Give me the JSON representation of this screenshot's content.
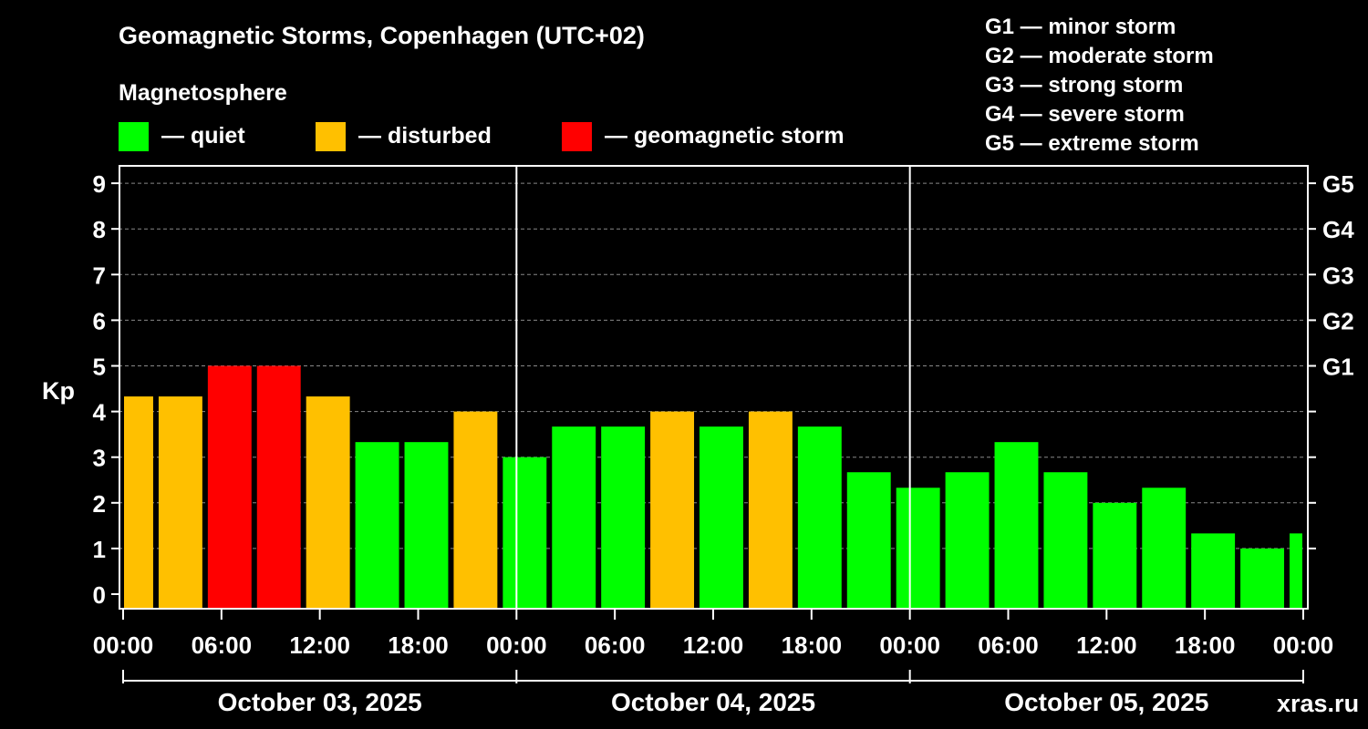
{
  "colors": {
    "background": "#000000",
    "quiet": "#00ff00",
    "disturbed": "#ffc000",
    "storm": "#ff0000",
    "foreground": "#ffffff",
    "grid": "#888888",
    "watermark": "#8c8c8c"
  },
  "header": {
    "title": "Geomagnetic Storms, Copenhagen (UTC+02)",
    "subtitle": "Magnetosphere"
  },
  "legend": [
    {
      "label": "— quiet",
      "color": "#00ff00"
    },
    {
      "label": "— disturbed",
      "color": "#ffc000"
    },
    {
      "label": "— geomagnetic storm",
      "color": "#ff0000"
    }
  ],
  "storm_scale": [
    "G1 — minor storm",
    "G2 — moderate storm",
    "G3 — strong storm",
    "G4 — severe storm",
    "G5 — extreme storm"
  ],
  "watermark": "xras.ru",
  "chart_data": {
    "type": "bar",
    "title": "Geomagnetic Storms, Copenhagen (UTC+02)",
    "ylabel": "Kp",
    "ylim": [
      0,
      9
    ],
    "yticks": [
      0,
      1,
      2,
      3,
      4,
      5,
      6,
      7,
      8,
      9
    ],
    "right_axis_labels": [
      {
        "value": 5,
        "label": "G1"
      },
      {
        "value": 6,
        "label": "G2"
      },
      {
        "value": 7,
        "label": "G3"
      },
      {
        "value": 8,
        "label": "G4"
      },
      {
        "value": 9,
        "label": "G5"
      }
    ],
    "grid": true,
    "x_range_hours": [
      0,
      72
    ],
    "x_tick_labels": [
      "00:00",
      "06:00",
      "12:00",
      "18:00",
      "00:00",
      "06:00",
      "12:00",
      "18:00",
      "00:00",
      "06:00",
      "12:00",
      "18:00",
      "00:00"
    ],
    "day_labels": [
      "October 03, 2025",
      "October 04, 2025",
      "October 05, 2025"
    ],
    "bars": [
      {
        "start": 0,
        "end": 2,
        "value": 4.33,
        "level": "disturbed"
      },
      {
        "start": 2,
        "end": 5,
        "value": 4.33,
        "level": "disturbed"
      },
      {
        "start": 5,
        "end": 8,
        "value": 5.0,
        "level": "storm"
      },
      {
        "start": 8,
        "end": 11,
        "value": 5.0,
        "level": "storm"
      },
      {
        "start": 11,
        "end": 14,
        "value": 4.33,
        "level": "disturbed"
      },
      {
        "start": 14,
        "end": 17,
        "value": 3.33,
        "level": "quiet"
      },
      {
        "start": 17,
        "end": 20,
        "value": 3.33,
        "level": "quiet"
      },
      {
        "start": 20,
        "end": 23,
        "value": 4.0,
        "level": "disturbed"
      },
      {
        "start": 23,
        "end": 26,
        "value": 3.0,
        "level": "quiet"
      },
      {
        "start": 26,
        "end": 29,
        "value": 3.67,
        "level": "quiet"
      },
      {
        "start": 29,
        "end": 32,
        "value": 3.67,
        "level": "quiet"
      },
      {
        "start": 32,
        "end": 35,
        "value": 4.0,
        "level": "disturbed"
      },
      {
        "start": 35,
        "end": 38,
        "value": 3.67,
        "level": "quiet"
      },
      {
        "start": 38,
        "end": 41,
        "value": 4.0,
        "level": "disturbed"
      },
      {
        "start": 41,
        "end": 44,
        "value": 3.67,
        "level": "quiet"
      },
      {
        "start": 44,
        "end": 47,
        "value": 2.67,
        "level": "quiet"
      },
      {
        "start": 47,
        "end": 50,
        "value": 2.33,
        "level": "quiet"
      },
      {
        "start": 50,
        "end": 53,
        "value": 2.67,
        "level": "quiet"
      },
      {
        "start": 53,
        "end": 56,
        "value": 3.33,
        "level": "quiet"
      },
      {
        "start": 56,
        "end": 59,
        "value": 2.67,
        "level": "quiet"
      },
      {
        "start": 59,
        "end": 62,
        "value": 2.0,
        "level": "quiet"
      },
      {
        "start": 62,
        "end": 65,
        "value": 2.33,
        "level": "quiet"
      },
      {
        "start": 65,
        "end": 68,
        "value": 1.33,
        "level": "quiet"
      },
      {
        "start": 68,
        "end": 71,
        "value": 1.0,
        "level": "quiet"
      },
      {
        "start": 71,
        "end": 72,
        "value": 1.33,
        "level": "quiet"
      }
    ]
  }
}
